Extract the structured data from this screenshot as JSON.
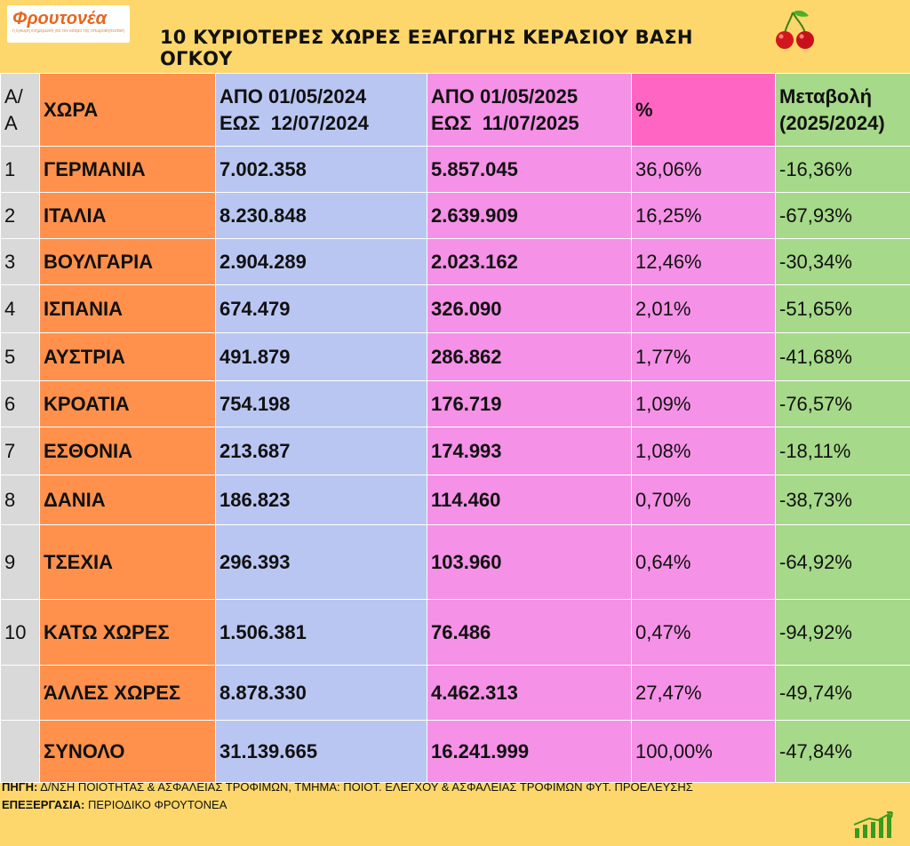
{
  "header": {
    "logo_name": "Φρουτονέα",
    "logo_tagline": "η έγκυρη ενημέρωση για τον κόσμο της οπωροκηπευτικής",
    "title": "10 ΚΥΡΙΟΤΕΡΕΣ ΧΩΡΕΣ ΕΞΑΓΩΓΗΣ ΚΕΡΑΣΙΟΥ ΒΑΣΗ ΟΓΚΟΥ",
    "icon": "cherry-icon"
  },
  "table": {
    "headers": {
      "aa": "Α/Α",
      "country": "ΧΩΡΑ",
      "y24_line1": "ΑΠΟ 01/05/2024",
      "y24_line2": "ΕΩΣ  12/07/2024",
      "y25_line1": "ΑΠΟ 01/05/2025",
      "y25_line2": "ΕΩΣ  11/07/2025",
      "pct": "%",
      "chg_line1": "Μεταβολή",
      "chg_line2": "(2025/2024)"
    },
    "rows": [
      {
        "aa": "1",
        "country": "ΓΕΡΜΑΝΙΑ",
        "y24": "7.002.358",
        "y25": "5.857.045",
        "pct": "36,06%",
        "chg": "-16,36%"
      },
      {
        "aa": "2",
        "country": "ΙΤΑΛΙΑ",
        "y24": "8.230.848",
        "y25": "2.639.909",
        "pct": "16,25%",
        "chg": "-67,93%"
      },
      {
        "aa": "3",
        "country": "ΒΟΥΛΓΑΡΙΑ",
        "y24": "2.904.289",
        "y25": "2.023.162",
        "pct": "12,46%",
        "chg": "-30,34%"
      },
      {
        "aa": "4",
        "country": "ΙΣΠΑΝΙΑ",
        "y24": "674.479",
        "y25": "326.090",
        "pct": "2,01%",
        "chg": "-51,65%"
      },
      {
        "aa": "5",
        "country": "ΑΥΣΤΡΙΑ",
        "y24": "491.879",
        "y25": "286.862",
        "pct": "1,77%",
        "chg": "-41,68%"
      },
      {
        "aa": "6",
        "country": "ΚΡΟΑΤΙΑ",
        "y24": "754.198",
        "y25": "176.719",
        "pct": "1,09%",
        "chg": "-76,57%"
      },
      {
        "aa": "7",
        "country": "ΕΣΘΟΝΙΑ",
        "y24": "213.687",
        "y25": "174.993",
        "pct": "1,08%",
        "chg": "-18,11%"
      },
      {
        "aa": "8",
        "country": "ΔΑΝΙΑ",
        "y24": "186.823",
        "y25": "114.460",
        "pct": "0,70%",
        "chg": "-38,73%"
      },
      {
        "aa": "9",
        "country": "ΤΣΕΧΙΑ",
        "y24": "296.393",
        "y25": "103.960",
        "pct": "0,64%",
        "chg": "-64,92%"
      },
      {
        "aa": "10",
        "country": "ΚΑΤΩ ΧΩΡΕΣ",
        "y24": "1.506.381",
        "y25": "76.486",
        "pct": "0,47%",
        "chg": "-94,92%"
      },
      {
        "aa": "",
        "country": "ΆΛΛΕΣ ΧΩΡΕΣ",
        "y24": "8.878.330",
        "y25": "4.462.313",
        "pct": "27,47%",
        "chg": "-49,74%"
      },
      {
        "aa": "",
        "country": "ΣΥΝΟΛΟ",
        "y24": "31.139.665",
        "y25": "16.241.999",
        "pct": "100,00%",
        "chg": "-47,84%"
      }
    ]
  },
  "footer": {
    "source_label": "ΠΗΓΗ:",
    "source_text": " Δ/ΝΣΗ ΠΟΙΟΤΗΤΑΣ & ΑΣΦΑΛΕΙΑΣ ΤΡΟΦΙΜΩΝ, ΤΜΗΜΑ: ΠΟΙΟΤ. ΕΛΕΓΧΟΥ & ΑΣΦΑΛΕΙΑΣ ΤΡΟΦΙΜΩΝ ΦΥΤ. ΠΡΟΕΛΕΥΣΗΣ",
    "processing_label": "ΕΠΕΞΕΡΓΑΣΙΑ:",
    "processing_text": " ΠΕΡΙΟΔΙΚΟ ΦΡΟΥΤΟΝΕΑ",
    "icon": "growth-chart-icon"
  },
  "colors": {
    "background": "#fdd76b",
    "aa_column": "#d9d9d9",
    "country_column": "#ff914d",
    "y2024_column": "#bac6f2",
    "y2025_column": "#f591e6",
    "pct_header": "#ff66c4",
    "change_column": "#a6d98a"
  }
}
